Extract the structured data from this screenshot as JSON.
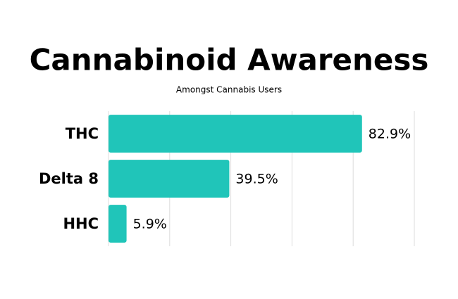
{
  "chart_data": {
    "type": "hbar",
    "title": "Cannabinoid Awareness",
    "subtitle": "Amongst Cannabis Users",
    "categories": [
      "THC",
      "Delta 8",
      "HHC"
    ],
    "values": [
      82.9,
      39.5,
      5.9
    ],
    "value_labels": [
      "82.9%",
      "39.5%",
      "5.9%"
    ],
    "color": "#20c5b9",
    "xlim": [
      0,
      100
    ],
    "xticks": [
      0,
      20,
      40,
      60,
      80,
      100
    ],
    "grid": true
  }
}
